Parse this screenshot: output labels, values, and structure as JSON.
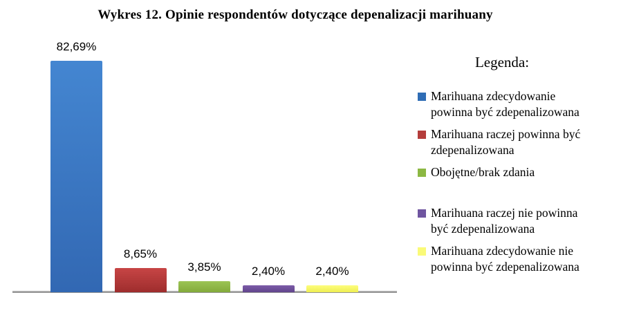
{
  "title": "Wykres 12. Opinie respondentów dotyczące depenalizacji marihuany",
  "chart_data": {
    "type": "bar",
    "title": "Wykres 12. Opinie respondentów dotyczące depenalizacji marihuany",
    "categories": [
      "Marihuana zdecydowanie powinna być zdepenalizowana",
      "Marihuana raczej powinna być zdepenalizowana",
      "Obojętne/brak zdania",
      "Marihuana raczej nie powinna być zdepenalizowana",
      "Marihuana zdecydowanie nie powinna być zdepenalizowana"
    ],
    "values": [
      82.69,
      8.65,
      3.85,
      2.4,
      2.4
    ],
    "value_labels": [
      "82,69%",
      "8,65%",
      "3,85%",
      "2,40%",
      "2,40%"
    ],
    "bar_colors": [
      "#3A7BC8",
      "#BC3C3C",
      "#94BA4A",
      "#73529D",
      "#FBFB66"
    ],
    "bar_gradients": [
      [
        "#4486D1",
        "#3268B3"
      ],
      [
        "#C74545",
        "#9E2D2D"
      ],
      [
        "#9CC455",
        "#83AA3B"
      ],
      [
        "#7C5BA8",
        "#61458C"
      ],
      [
        "#FDFD7E",
        "#EFEF52"
      ]
    ],
    "xlabel": "",
    "ylabel": "",
    "ylim": [
      0,
      100
    ],
    "grid": false,
    "legend_position": "right",
    "axis_line_color": "#8a8a8a",
    "value_format": "percent-comma"
  },
  "legend": {
    "title": "Legenda:",
    "items": [
      {
        "label": [
          "Marihuana zdecydowanie",
          "powinna być zdepenalizowana"
        ],
        "color": "#2F6DB5"
      },
      {
        "label": [
          "Marihuana raczej powinna być",
          "zdepenalizowana"
        ],
        "color": "#B43D3B"
      },
      {
        "label": [
          "Obojętne/brak zdania"
        ],
        "color": "#8CB843"
      },
      {
        "label": [
          "Marihuana raczej nie powinna",
          "być zdepenalizowana"
        ],
        "color": "#6F55A0"
      },
      {
        "label": [
          "Marihuana zdecydowanie nie",
          "powinna być zdepenalizowana"
        ],
        "color": "#FAFA78"
      }
    ]
  }
}
